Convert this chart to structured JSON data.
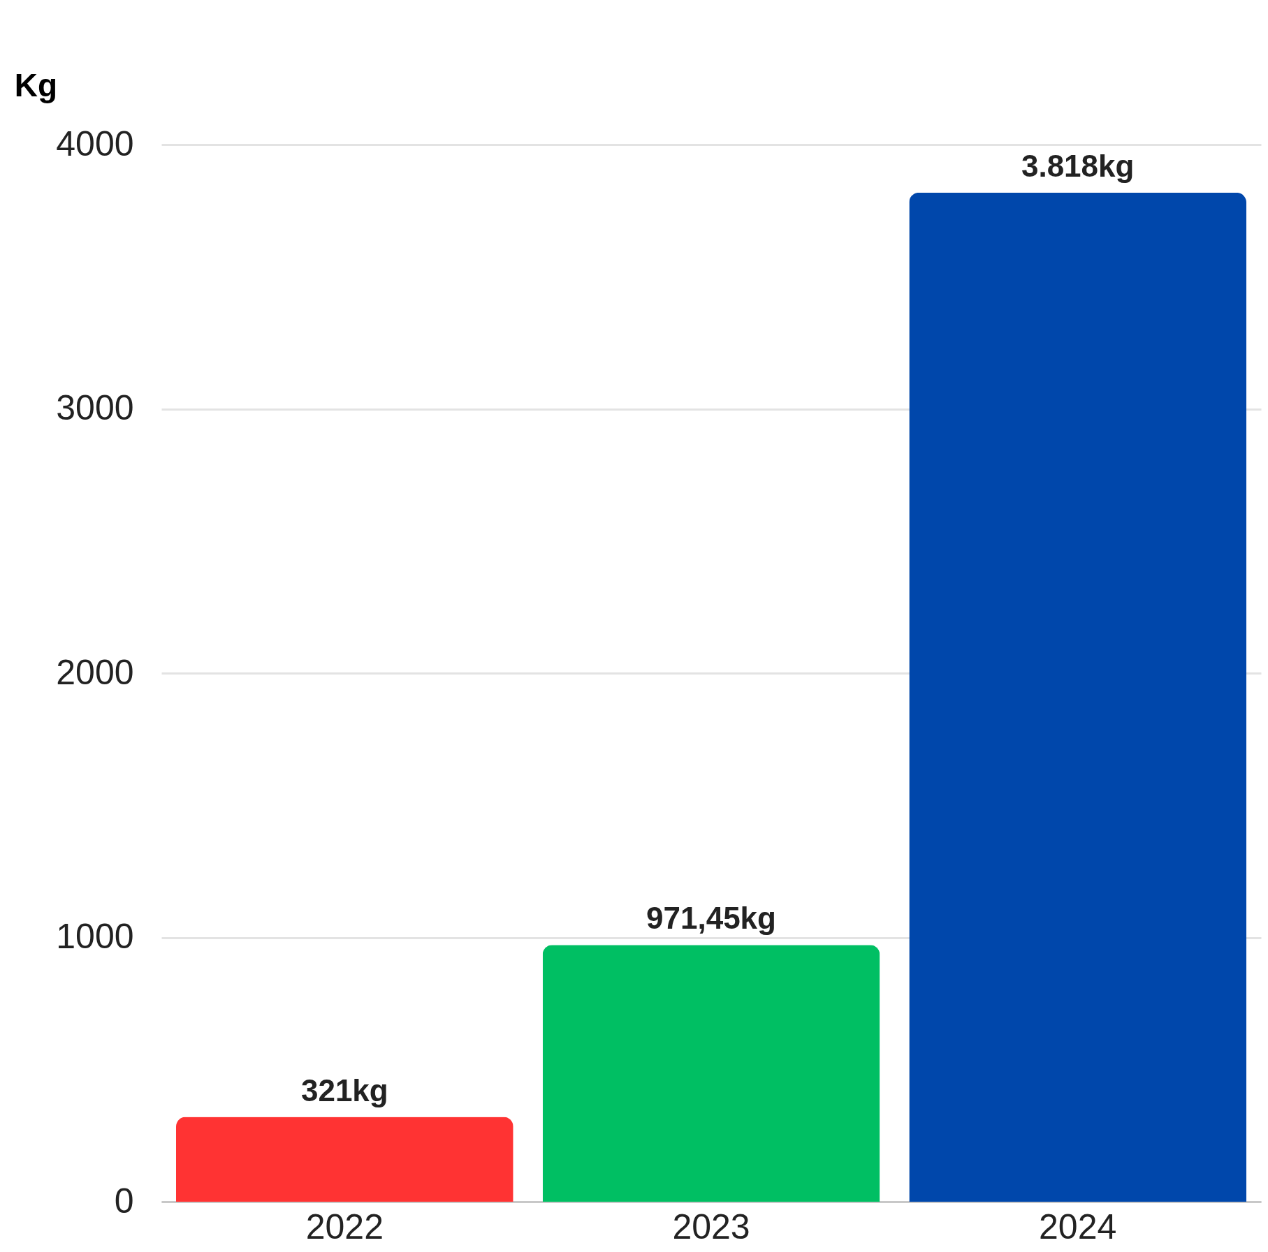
{
  "chart_data": {
    "type": "bar",
    "ylabel": "Kg",
    "categories": [
      "2022",
      "2023",
      "2024"
    ],
    "values": [
      321,
      971.45,
      3818
    ],
    "value_labels": [
      "321kg",
      "971,45kg",
      "3.818kg"
    ],
    "colors": [
      "#ff3333",
      "#00bf63",
      "#0047ab"
    ],
    "ylim": [
      0,
      4000
    ],
    "yticks": [
      0,
      1000,
      2000,
      3000,
      4000
    ],
    "grid": "y"
  }
}
